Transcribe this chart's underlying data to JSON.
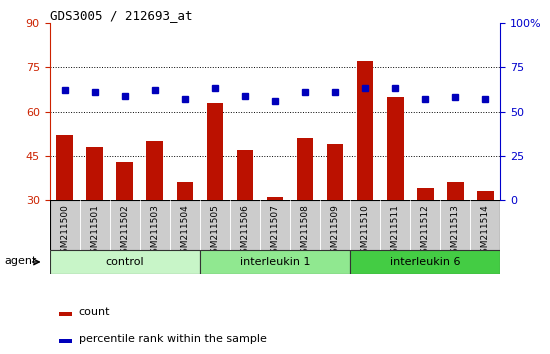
{
  "title": "GDS3005 / 212693_at",
  "samples": [
    "GSM211500",
    "GSM211501",
    "GSM211502",
    "GSM211503",
    "GSM211504",
    "GSM211505",
    "GSM211506",
    "GSM211507",
    "GSM211508",
    "GSM211509",
    "GSM211510",
    "GSM211511",
    "GSM211512",
    "GSM211513",
    "GSM211514"
  ],
  "counts": [
    52,
    48,
    43,
    50,
    36,
    63,
    47,
    31,
    51,
    49,
    77,
    65,
    34,
    36,
    33
  ],
  "percentiles": [
    62,
    61,
    59,
    62,
    57,
    63,
    59,
    56,
    61,
    61,
    63,
    63,
    57,
    58,
    57
  ],
  "groups": [
    {
      "label": "control",
      "start": 0,
      "end": 4,
      "color": "#c8f5c8"
    },
    {
      "label": "interleukin 1",
      "start": 5,
      "end": 9,
      "color": "#90e890"
    },
    {
      "label": "interleukin 6",
      "start": 10,
      "end": 14,
      "color": "#44cc44"
    }
  ],
  "bar_color": "#bb1100",
  "dot_color": "#0000bb",
  "left_ylim": [
    30,
    90
  ],
  "left_yticks": [
    30,
    45,
    60,
    75,
    90
  ],
  "right_ylim": [
    0,
    100
  ],
  "right_yticks": [
    0,
    25,
    50,
    75,
    100
  ],
  "right_yticklabels": [
    "0",
    "25",
    "50",
    "75",
    "100%"
  ],
  "grid_values": [
    45,
    60,
    75
  ],
  "bar_width": 0.55,
  "agent_label": "agent",
  "legend_count": "count",
  "legend_percentile": "percentile rank within the sample",
  "left_tick_color": "#cc2200",
  "right_tick_color": "#0000cc",
  "background_xtick": "#cccccc",
  "group_border_color": "#333333"
}
